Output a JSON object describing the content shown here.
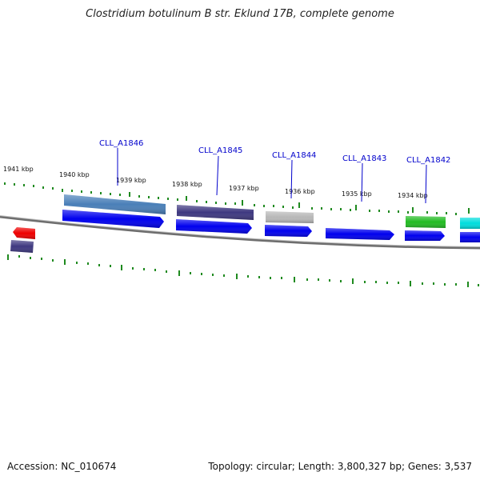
{
  "title": "Clostridium botulinum B str. Eklund 17B, complete genome",
  "footer": {
    "accession": "Accession: NC_010674",
    "summary": "Topology: circular; Length: 3,800,327 bp; Genes: 3,537"
  },
  "kbp_labels": [
    "1941 kbp",
    "1940 kbp",
    "1939 kbp",
    "1938 kbp",
    "1937 kbp",
    "1936 kbp",
    "1935 kbp",
    "1934 kbp"
  ],
  "gene_labels": [
    "CLL_A1846",
    "CLL_A1845",
    "CLL_A1844",
    "CLL_A1843",
    "CLL_A1842"
  ],
  "colors": {
    "label": "#0000cc",
    "tick": "#007700",
    "backbone": "#777777",
    "cds": "#0000ee",
    "red": "#ee0000",
    "steelblue": "#4a7fb8",
    "darkslate": "#3e3880",
    "gray": "#b8b8b8",
    "green": "#22bb22",
    "cyan": "#00dddd"
  }
}
